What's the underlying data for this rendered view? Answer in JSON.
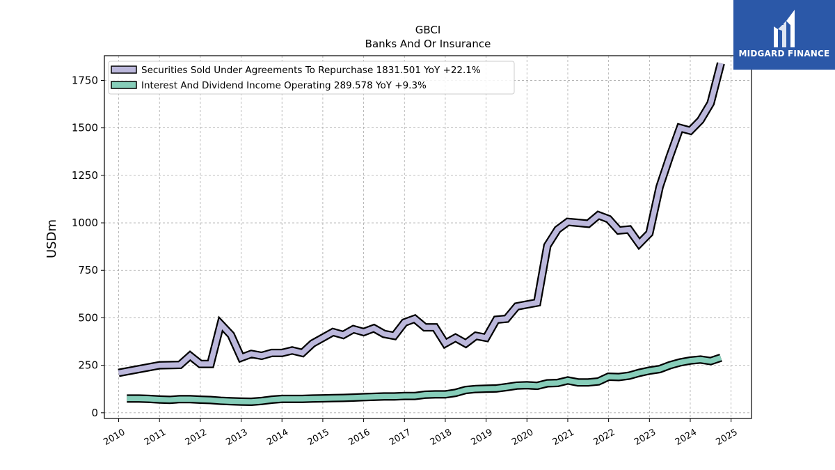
{
  "chart_data": {
    "type": "line",
    "title": "GBCI",
    "subtitle": "Banks And Or Insurance",
    "ylabel": "USDm",
    "xlabel": "",
    "xlim": [
      2009.65,
      2025.5
    ],
    "ylim": [
      -30,
      1880
    ],
    "yticks": [
      0,
      250,
      500,
      750,
      1000,
      1250,
      1500,
      1750
    ],
    "xticks": [
      2010,
      2011,
      2012,
      2013,
      2014,
      2015,
      2016,
      2017,
      2018,
      2019,
      2020,
      2021,
      2022,
      2023,
      2024,
      2025
    ],
    "grid": true,
    "legend_position": "top-left",
    "series": [
      {
        "name": "Securities Sold Under Agreements To Repurchase",
        "legend": "Securities Sold Under Agreements To Repurchase  1831.501 YoY +22.1%",
        "color": "#bcb8dc",
        "x": [
          2010.0,
          2011.0,
          2011.5,
          2011.75,
          2012.0,
          2012.25,
          2012.5,
          2012.75,
          2013.0,
          2013.25,
          2013.5,
          2013.75,
          2014.0,
          2014.25,
          2014.5,
          2014.75,
          2015.0,
          2015.25,
          2015.5,
          2015.75,
          2016.0,
          2016.25,
          2016.5,
          2016.75,
          2017.0,
          2017.25,
          2017.5,
          2017.75,
          2018.0,
          2018.25,
          2018.5,
          2018.75,
          2019.0,
          2019.25,
          2019.5,
          2019.75,
          2020.0,
          2020.25,
          2020.5,
          2020.75,
          2021.0,
          2021.25,
          2021.5,
          2021.75,
          2022.0,
          2022.25,
          2022.5,
          2022.75,
          2023.0,
          2023.25,
          2023.5,
          2023.75,
          2024.0,
          2024.25,
          2024.5,
          2024.75
        ],
        "values": [
          210,
          250,
          252,
          300,
          257,
          257,
          467,
          410,
          290,
          310,
          300,
          315,
          315,
          328,
          315,
          365,
          395,
          425,
          410,
          440,
          425,
          445,
          415,
          405,
          475,
          495,
          450,
          450,
          365,
          395,
          365,
          405,
          395,
          490,
          495,
          560,
          570,
          580,
          880,
          965,
          1005,
          1000,
          995,
          1040,
          1020,
          960,
          965,
          890,
          945,
          1190,
          1350,
          1500,
          1485,
          1540,
          1630,
          1840
        ]
      },
      {
        "name": "Interest And Dividend Income Operating",
        "legend": "Interest And Dividend Income Operating  289.578 YoY +9.3%",
        "color": "#86cdb9",
        "x": [
          2010.2,
          2010.5,
          2010.75,
          2011.0,
          2011.25,
          2011.5,
          2011.75,
          2012.0,
          2012.25,
          2012.5,
          2012.75,
          2013.0,
          2013.25,
          2013.5,
          2013.75,
          2014.0,
          2014.25,
          2014.5,
          2014.75,
          2015.0,
          2015.25,
          2015.5,
          2015.75,
          2016.0,
          2016.25,
          2016.5,
          2016.75,
          2017.0,
          2017.25,
          2017.5,
          2017.75,
          2018.0,
          2018.25,
          2018.5,
          2018.75,
          2019.0,
          2019.25,
          2019.5,
          2019.75,
          2020.0,
          2020.25,
          2020.5,
          2020.75,
          2021.0,
          2021.25,
          2021.5,
          2021.75,
          2022.0,
          2022.25,
          2022.5,
          2022.75,
          2023.0,
          2023.25,
          2023.5,
          2023.75,
          2024.0,
          2024.25,
          2024.5,
          2024.75
        ],
        "values": [
          75,
          75,
          73,
          70,
          68,
          72,
          72,
          69,
          67,
          63,
          61,
          59,
          58,
          62,
          69,
          73,
          73,
          73,
          75,
          76,
          77,
          78,
          80,
          82,
          84,
          86,
          86,
          88,
          88,
          95,
          97,
          97,
          105,
          120,
          125,
          127,
          128,
          135,
          143,
          145,
          142,
          155,
          157,
          170,
          160,
          160,
          165,
          190,
          188,
          195,
          210,
          222,
          230,
          250,
          265,
          275,
          280,
          272,
          290
        ]
      }
    ]
  },
  "logo": {
    "text": "MIDGARD FINANCE"
  }
}
